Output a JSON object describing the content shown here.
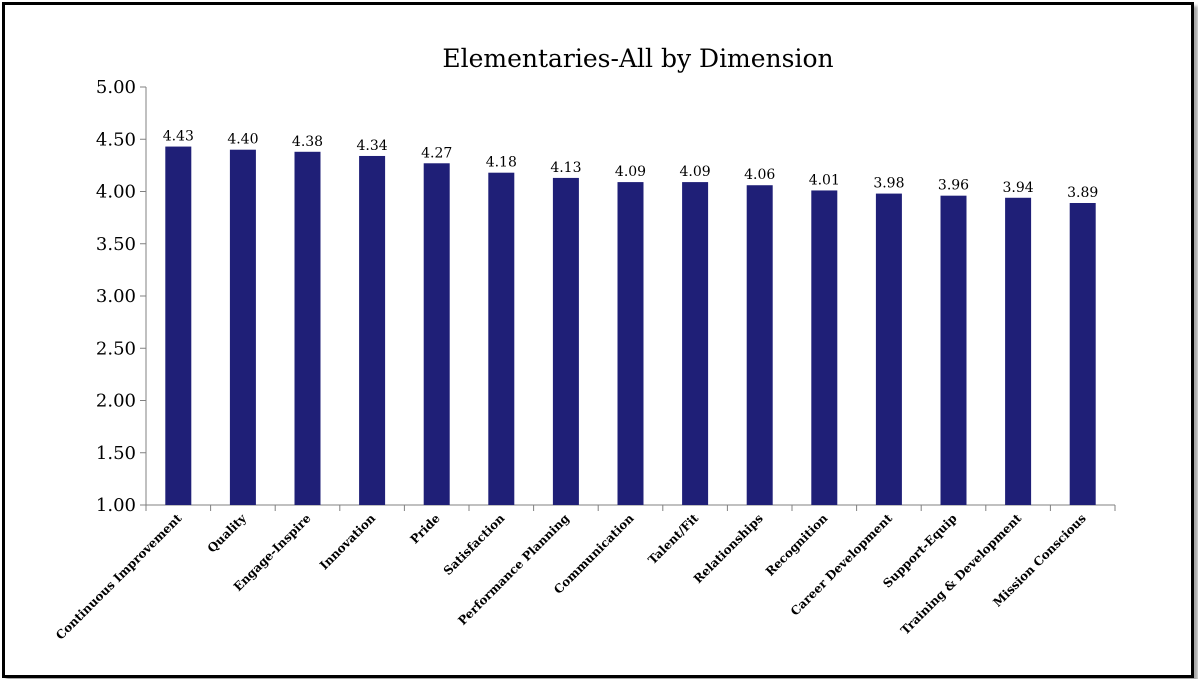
{
  "chart_data": {
    "type": "bar",
    "title": "Elementaries-All  by Dimension",
    "xlabel": "",
    "ylabel": "",
    "ylim": [
      1.0,
      5.0
    ],
    "yticks": [
      "1.00",
      "1.50",
      "2.00",
      "2.50",
      "3.00",
      "3.50",
      "4.00",
      "4.50",
      "5.00"
    ],
    "grid": false,
    "legend": "none",
    "bar_color": "#1f1f77",
    "categories": [
      "Continuous Improvement",
      "Quality",
      "Engage-Inspire",
      "Innovation",
      "Pride",
      "Satisfaction",
      "Performance Planning",
      "Communication",
      "Talent/Fit",
      "Relationships",
      "Recognition",
      "Career Development",
      "Support-Equip",
      "Training & Development",
      "Mission Conscious"
    ],
    "values": [
      4.43,
      4.4,
      4.38,
      4.34,
      4.27,
      4.18,
      4.13,
      4.09,
      4.09,
      4.06,
      4.01,
      3.98,
      3.96,
      3.94,
      3.89
    ],
    "data_labels": [
      "4.43",
      "4.40",
      "4.38",
      "4.34",
      "4.27",
      "4.18",
      "4.13",
      "4.09",
      "4.09",
      "4.06",
      "4.01",
      "3.98",
      "3.96",
      "3.94",
      "3.89"
    ]
  }
}
